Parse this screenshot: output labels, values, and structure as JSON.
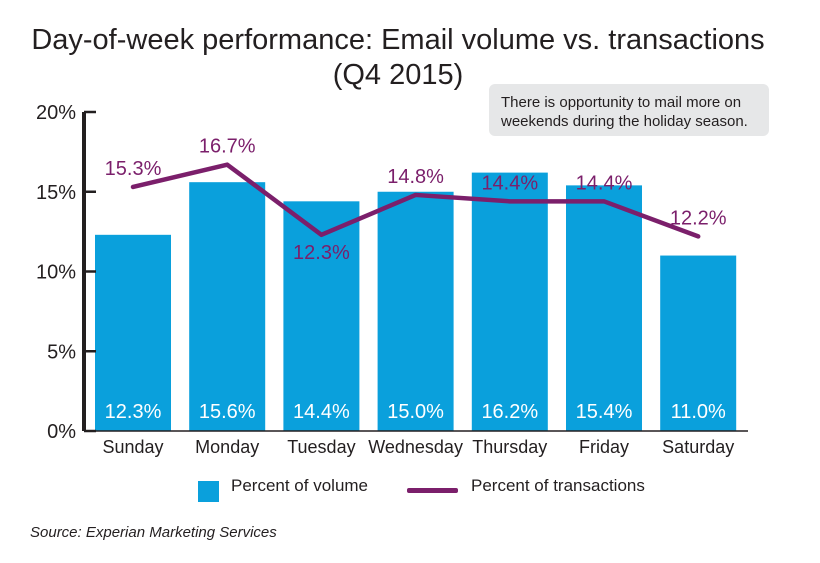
{
  "chart_data": {
    "type": "bar",
    "title": "Day-of-week performance: Email volume vs. transactions",
    "subtitle": "(Q4 2015)",
    "categories": [
      "Sunday",
      "Monday",
      "Tuesday",
      "Wednesday",
      "Thursday",
      "Friday",
      "Saturday"
    ],
    "series": [
      {
        "name": "Percent of volume",
        "type": "bar",
        "color": "#0aa0dc",
        "values": [
          12.3,
          15.6,
          14.4,
          15.0,
          16.2,
          15.4,
          11.0
        ],
        "labels": [
          "12.3%",
          "15.6%",
          "14.4%",
          "15.0%",
          "16.2%",
          "15.4%",
          "11.0%"
        ]
      },
      {
        "name": "Percent of transactions",
        "type": "line",
        "color": "#7b1f6b",
        "values": [
          15.3,
          16.7,
          12.3,
          14.8,
          14.4,
          14.4,
          12.2
        ],
        "labels": [
          "15.3%",
          "16.7%",
          "12.3%",
          "14.8%",
          "14.4%",
          "14.4%",
          "12.2%"
        ]
      }
    ],
    "yticks": [
      "0%",
      "5%",
      "10%",
      "15%",
      "20%"
    ],
    "ylim": [
      0,
      20
    ],
    "grid": false,
    "legend": "bottom",
    "annotation": "There is opportunity to mail more on weekends during the holiday season.",
    "source": "Source: Experian Marketing Services"
  }
}
